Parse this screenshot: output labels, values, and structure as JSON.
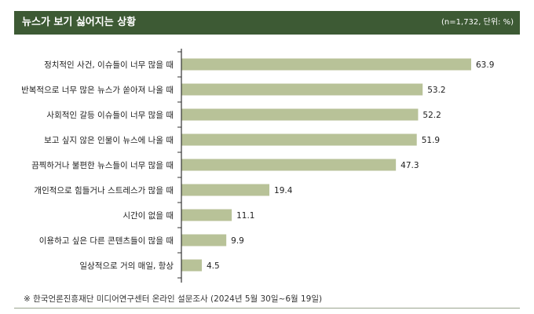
{
  "header": {
    "title": "뉴스가 보기 싫어지는 상황",
    "note": "(n=1,732, 단위: %)"
  },
  "footnote": "※ 한국언론진흥재단 미디어연구센터 온라인 설문조사 (2024년 5월 30일~6월 19일)",
  "colors": {
    "header_bg": "#3d5a34",
    "bar": "#b8c298",
    "axis": "#333333"
  },
  "chart_data": {
    "type": "bar",
    "orientation": "horizontal",
    "categories": [
      "정치적인 사건, 이슈들이 너무 많을 때",
      "반복적으로 너무 많은 뉴스가 쏟아져 나올 때",
      "사회적인 갈등 이슈들이 너무 많을 때",
      "보고 싶지 않은 인물이 뉴스에 나올 때",
      "끔찍하거나 불편한 뉴스들이 너무 많을 때",
      "개인적으로 힘들거나 스트레스가 많을 때",
      "시간이 없을 때",
      "이용하고 싶은 다른 콘텐츠들이 많을 때",
      "일상적으로 거의 매일, 항상"
    ],
    "values": [
      63.9,
      53.2,
      52.2,
      51.9,
      47.3,
      19.4,
      11.1,
      9.9,
      4.5
    ],
    "xlim": [
      0,
      70
    ],
    "grid": false,
    "legend": "none"
  }
}
